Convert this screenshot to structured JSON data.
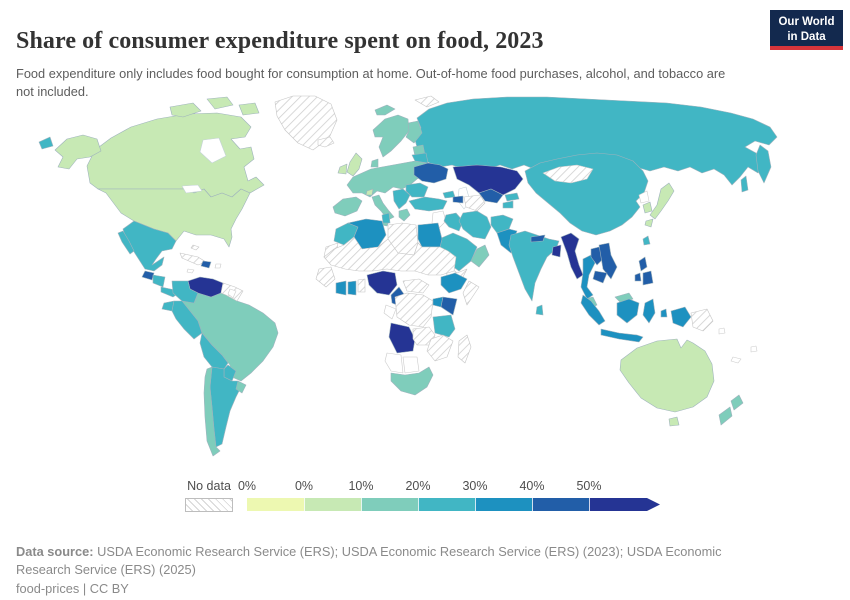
{
  "header": {
    "title": "Share of consumer expenditure spent on food, 2023",
    "subtitle": "Food expenditure only includes food bought for consumption at home. Out-of-home food purchases, alcohol, and tobacco are not included."
  },
  "logo": {
    "line1": "Our World",
    "line2": "in Data"
  },
  "colors": {
    "logo_bg": "#13294e",
    "logo_accent": "#d7353b",
    "title_text": "#333333",
    "subtitle_text": "#5d5d5d",
    "footer_text": "#8a8a8a",
    "map_border": "#9fb3bd",
    "nodata_border": "#c6c6c6"
  },
  "legend": {
    "no_data_label": "No data",
    "tick_labels": [
      "0%",
      "0%",
      "10%",
      "20%",
      "30%",
      "40%",
      "50%"
    ],
    "colors": [
      "#edf8b1",
      "#c7e9b4",
      "#7fcdbb",
      "#41b6c4",
      "#1d91c0",
      "#225ea8",
      "#253494"
    ]
  },
  "footer": {
    "source_label": "Data source:",
    "source_rest": " USDA Economic Research Service (ERS); USDA Economic Research Service (ERS) (2023); USDA Economic Research Service (ERS) (2025)",
    "license_text": "food-prices | CC BY"
  },
  "chart_data": {
    "type": "heatmap",
    "variant": "choropleth-world-map",
    "title": "Share of consumer expenditure spent on food, 2023",
    "unit": "% of consumer expenditure",
    "year": 2023,
    "legend_position": "bottom",
    "bin_ranges": [
      "0%",
      "0–10%",
      "10–20%",
      "20–30%",
      "30–40%",
      "40–50%",
      "50%+"
    ],
    "bin_colors": [
      "#edf8b1",
      "#c7e9b4",
      "#7fcdbb",
      "#41b6c4",
      "#1d91c0",
      "#225ea8",
      "#253494"
    ],
    "no_data_style": "hatched",
    "region_bins": {
      "United States": 1,
      "Canada": 1,
      "Greenland": "no-data",
      "Mexico": 3,
      "Guatemala": 5,
      "Honduras & Nicaragua": 3,
      "Costa Rica & Panama": 3,
      "Cuba": "no-data",
      "Bahamas": "no-data",
      "Dominican Republic": 5,
      "Jamaica": "none",
      "Puerto Rico": "none",
      "Venezuela": 6,
      "Colombia": 3,
      "Guyana & Suriname": "no-data",
      "Suriname": "none",
      "Ecuador": 3,
      "Peru": 3,
      "Brazil": 2,
      "Bolivia": 3,
      "Paraguay": 3,
      "Argentina": 3,
      "Chile": 2,
      "Uruguay": 2,
      "Iceland": "no-data",
      "United Kingdom": 1,
      "Ireland": 1,
      "Switzerland": 1,
      "Norway & Sweden": 2,
      "Finland": 2,
      "Denmark": 2,
      "Baltic states": 2,
      "Western & Central Europe": 2,
      "Spain & Portugal": 2,
      "Italy": 2,
      "Balkans": 3,
      "Greece": 2,
      "Belarus": 3,
      "Ukraine": 5,
      "Romania & Bulgaria": 3,
      "Svalbard": 2,
      "Franz Josef Land": "no-data",
      "Russia": 3,
      "Kazakhstan": 6,
      "Uzbekistan": 5,
      "Turkmenistan": "no-data",
      "Kyrgyzstan": 3,
      "Tajikistan": 3,
      "Georgia": 3,
      "Azerbaijan": 5,
      "Turkey": 3,
      "Syria, Jordan & Israel": "none",
      "Iraq": 3,
      "Iran": 3,
      "Afghanistan": 3,
      "Pakistan": 4,
      "Saudi Arabia": 3,
      "Yemen": "no-data",
      "Oman & UAE": 2,
      "Morocco": 3,
      "Western Sahara": "no-data",
      "Algeria": 4,
      "Tunisia": 3,
      "Libya": "no-data",
      "Egypt": 4,
      "Sahel (Mauritania, Mali, Niger, Chad, Sudan)": "no-data",
      "Senegal & Guinea": "no-data",
      "Côte d'Ivoire": 4,
      "Ghana": 4,
      "Togo & Benin": "no-data",
      "Nigeria": 6,
      "Cameroon": 5,
      "Gabon & Congo": "none",
      "Central African Republic": "no-data",
      "DR Congo": "no-data",
      "Ethiopia": 4,
      "Somalia": "no-data",
      "Uganda": 4,
      "Kenya": 5,
      "Tanzania": 3,
      "Angola": 6,
      "Zambia": "no-data",
      "Zimbabwe & Mozambique": "no-data",
      "Namibia": "none",
      "Botswana": "none",
      "South Africa": 2,
      "Madagascar": "no-data",
      "China": 3,
      "Mongolia": "no-data",
      "North Korea": "none",
      "South Korea": 1,
      "Japan": 1,
      "Taiwan": 3,
      "India": 3,
      "Nepal": 5,
      "Bangladesh": 6,
      "Sri Lanka": 3,
      "Myanmar": 6,
      "Thailand": 4,
      "Laos": 5,
      "Vietnam": 5,
      "Cambodia": 5,
      "Malaysia": 2,
      "Philippines": 5,
      "Indonesia": 4,
      "Papua New Guinea": "no-data",
      "Australia": 1,
      "New Zealand": 2,
      "Solomon Islands": "none",
      "Fiji": "none",
      "New Caledonia": "none"
    }
  }
}
